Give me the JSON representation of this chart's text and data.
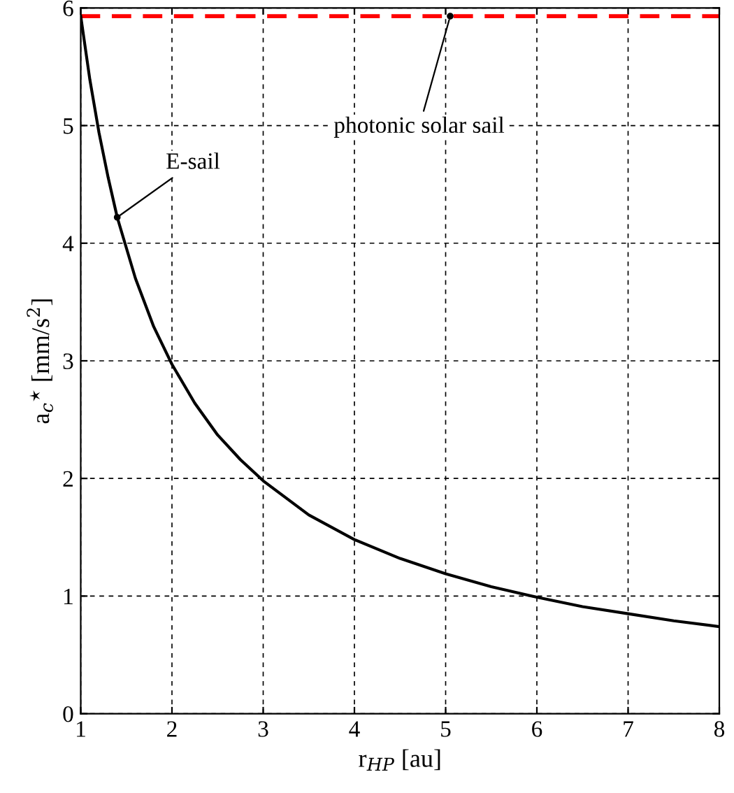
{
  "chart_data": {
    "type": "line",
    "xlabel": "r$_{HP}$ [au]",
    "ylabel": "a$_{c}$$^{⋆}$ [mm/s$^{2}$]",
    "x": [
      1,
      1.1,
      1.2,
      1.3,
      1.4,
      1.6,
      1.8,
      2,
      2.25,
      2.5,
      2.75,
      3,
      3.5,
      4,
      4.5,
      5,
      5.5,
      6,
      6.5,
      7,
      7.5,
      8
    ],
    "series": [
      {
        "color": "#000000",
        "values": [
          5.93,
          5.39,
          4.94,
          4.56,
          4.22,
          3.7,
          3.29,
          2.97,
          2.64,
          2.37,
          2.16,
          1.98,
          1.69,
          1.48,
          1.32,
          1.19,
          1.08,
          0.99,
          0.91,
          0.85,
          0.79,
          0.74
        ]
      }
    ],
    "ref_lines": [
      {
        "axis": "y",
        "value": 5.93,
        "color": "#ff0000",
        "line_style": "dashed"
      }
    ],
    "annotations": [
      {
        "text": "E-sail",
        "x": 1.4,
        "y": 4.22
      },
      {
        "text": "photonic solar sail",
        "x": 5.05,
        "y": 5.93
      }
    ],
    "xlim": [
      1,
      8
    ],
    "ylim": [
      0,
      6
    ],
    "xticks": [
      1,
      2,
      3,
      4,
      5,
      6,
      7,
      8
    ],
    "yticks": [
      0,
      1,
      2,
      3,
      4,
      5,
      6
    ],
    "grid": true,
    "marker": "none",
    "line_style": "solid"
  }
}
